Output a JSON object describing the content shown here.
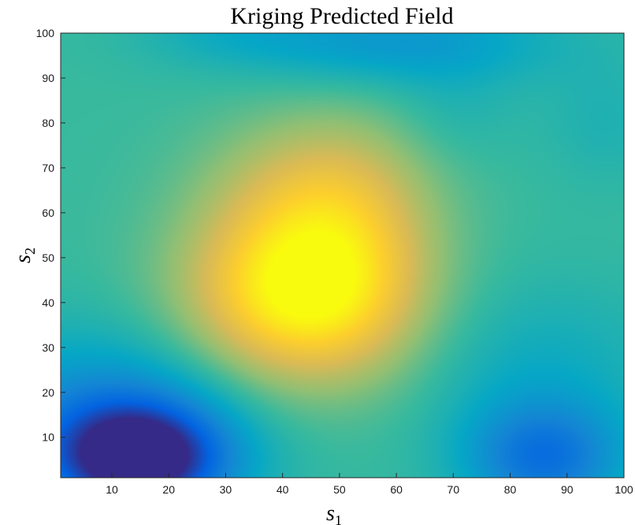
{
  "chart_data": {
    "type": "heatmap",
    "title": "Kriging Predicted Field",
    "xlabel": {
      "base": "s",
      "sub": "1"
    },
    "ylabel": {
      "base": "s",
      "sub": "2"
    },
    "xlim": [
      1,
      100
    ],
    "ylim": [
      1,
      100
    ],
    "xticks": [
      "10",
      "20",
      "30",
      "40",
      "50",
      "60",
      "70",
      "80",
      "90",
      "100"
    ],
    "yticks": [
      "10",
      "20",
      "30",
      "40",
      "50",
      "60",
      "70",
      "80",
      "90",
      "100"
    ],
    "colormap": "parula",
    "grid": false,
    "colormap_stops": [
      "#352a87",
      "#0363e1",
      "#1485d4",
      "#06a7c6",
      "#38b99e",
      "#92bf73",
      "#d9ba56",
      "#fcce2e",
      "#f9fb0e"
    ],
    "field_features": [
      {
        "kind": "peak",
        "center": [
          43,
          42
        ],
        "value": 1.0
      },
      {
        "kind": "trough",
        "center": [
          15,
          5
        ],
        "value": 0.0
      },
      {
        "kind": "trough",
        "center": [
          86,
          5
        ],
        "value": 0.2
      },
      {
        "kind": "trough",
        "center": [
          60,
          98
        ],
        "value": 0.3
      }
    ]
  }
}
